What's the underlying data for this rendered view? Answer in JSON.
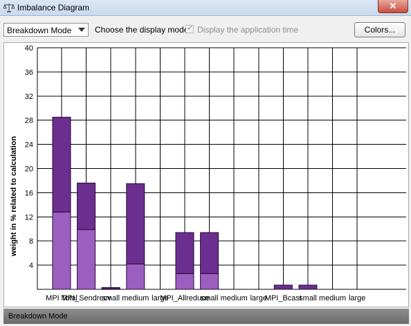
{
  "window": {
    "title": "Imbalance Diagram",
    "close_label": "✕"
  },
  "toolbar": {
    "display_mode_value": "Breakdown Mode",
    "display_mode_label": "Choose the display mode",
    "show_app_time_label": "Display the application time",
    "show_app_time_checked": true,
    "colors_button_label": "Colors..."
  },
  "status": {
    "text": "Breakdown Mode"
  },
  "colors": {
    "bar_light": "#9b5fc0",
    "bar_dark": "#6a2f8f",
    "grid": "#000000"
  },
  "chart_data": {
    "type": "bar",
    "stacked": true,
    "ylabel": "weight in % related to calculation",
    "ylim": [
      0,
      40
    ],
    "yticks": [
      4,
      8,
      12,
      16,
      20,
      24,
      28,
      32,
      36,
      40
    ],
    "grid": true,
    "x_labels": [
      "MPI Total",
      "MPI_Sendrecv",
      "small",
      "medium",
      "large",
      "MPI_Allreduce",
      "small",
      "medium",
      "large",
      "MPI_Bcast",
      "small",
      "medium",
      "large"
    ],
    "series": [
      {
        "values": [
          12.8,
          9.9,
          0.1,
          4.2,
          0,
          2.6,
          2.6,
          0,
          0,
          0,
          0,
          0,
          0
        ]
      },
      {
        "values": [
          15.7,
          7.7,
          0.2,
          13.3,
          0,
          6.8,
          6.8,
          0,
          0,
          0.7,
          0.7,
          0,
          0
        ]
      }
    ]
  }
}
